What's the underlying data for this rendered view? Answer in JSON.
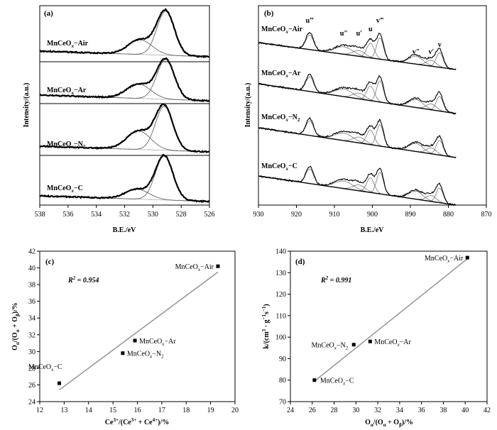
{
  "chart_data": [
    {
      "panel": "(a)",
      "type": "line",
      "xlabel": "B.E./eV",
      "ylabel": "Intensity/(a.u.)",
      "xlim": [
        538,
        526
      ],
      "x_ticks": [
        538,
        536,
        534,
        532,
        530,
        528,
        526
      ],
      "series": [
        {
          "name": "MnCeOx−Air",
          "name_parts": [
            "MnCeO",
            "x",
            "−Air"
          ],
          "peaks": [
            {
              "center": 529.1,
              "height": 1.0
            },
            {
              "center": 530.9,
              "height": 0.33
            }
          ]
        },
        {
          "name": "MnCeOx−Ar",
          "name_parts": [
            "MnCeO",
            "x",
            "−Ar"
          ],
          "peaks": [
            {
              "center": 529.1,
              "height": 1.0
            },
            {
              "center": 531.0,
              "height": 0.36
            }
          ]
        },
        {
          "name": "MnCeOx−N2",
          "name_parts": [
            "MnCeO",
            "x",
            "−N",
            "2"
          ],
          "peaks": [
            {
              "center": 529.2,
              "height": 1.0
            },
            {
              "center": 531.0,
              "height": 0.42
            }
          ]
        },
        {
          "name": "MnCeOx−C",
          "name_parts": [
            "MnCeO",
            "x",
            "−C"
          ],
          "peaks": [
            {
              "center": 529.2,
              "height": 1.0
            },
            {
              "center": 531.1,
              "height": 0.22
            }
          ]
        }
      ]
    },
    {
      "panel": "(b)",
      "type": "line",
      "xlabel": "B.E./eV",
      "ylabel": "Intensity/(a.u.)",
      "xlim": [
        930,
        870
      ],
      "x_ticks": [
        930,
        920,
        910,
        900,
        890,
        880,
        870
      ],
      "peak_labels": [
        {
          "text": "u‴",
          "x": 916.5
        },
        {
          "text": "u″",
          "x": 907.5
        },
        {
          "text": "u′",
          "x": 903.5
        },
        {
          "text": "u",
          "x": 900.5
        },
        {
          "text": "v‴",
          "x": 898.0
        },
        {
          "text": "v″",
          "x": 888.5
        },
        {
          "text": "v′",
          "x": 884.5
        },
        {
          "text": "v",
          "x": 882.3
        }
      ],
      "series": [
        {
          "name": "MnCeOx−Air",
          "name_parts": [
            "MnCeO",
            "x",
            "−Air"
          ]
        },
        {
          "name": "MnCeOx−Ar",
          "name_parts": [
            "MnCeO",
            "x",
            "−Ar"
          ]
        },
        {
          "name": "MnCeOx−N2",
          "name_parts": [
            "MnCeO",
            "x",
            "−N",
            "2"
          ]
        },
        {
          "name": "MnCeOx−C",
          "name_parts": [
            "MnCeO",
            "x",
            "−C"
          ]
        }
      ],
      "peaks": [
        {
          "center": 916.5,
          "height": 0.55
        },
        {
          "center": 907.5,
          "height": 0.28
        },
        {
          "center": 903.5,
          "height": 0.22
        },
        {
          "center": 900.5,
          "height": 0.55
        },
        {
          "center": 898.0,
          "height": 0.8
        },
        {
          "center": 888.5,
          "height": 0.3
        },
        {
          "center": 884.5,
          "height": 0.22
        },
        {
          "center": 882.3,
          "height": 0.55
        }
      ]
    },
    {
      "panel": "(c)",
      "type": "scatter",
      "xlabel": "Ce3+/(Ce3+ + Ce4+)/%",
      "ylabel": "Oα/(Oα + Oβ)/%",
      "xlim": [
        12,
        20
      ],
      "ylim": [
        24,
        42
      ],
      "x_ticks": [
        12,
        13,
        14,
        15,
        16,
        17,
        18,
        19,
        20
      ],
      "y_ticks": [
        24,
        26,
        28,
        30,
        32,
        34,
        36,
        38,
        40,
        42
      ],
      "r2": "0.954",
      "points": [
        {
          "name_parts": [
            "MnCeO",
            "x",
            "−Air"
          ],
          "x": 19.3,
          "y": 40.2
        },
        {
          "name_parts": [
            "MnCeO",
            "x",
            "−Ar"
          ],
          "x": 15.9,
          "y": 31.3
        },
        {
          "name_parts": [
            "MnCeO",
            "x",
            "−N",
            "2"
          ],
          "x": 15.4,
          "y": 29.8
        },
        {
          "name_parts": [
            "MnCeO",
            "x",
            "−C"
          ],
          "x": 12.8,
          "y": 26.2
        }
      ],
      "fit_line": {
        "x": [
          12.8,
          19.3
        ],
        "y": [
          25.4,
          39.5
        ]
      }
    },
    {
      "panel": "(d)",
      "type": "scatter",
      "xlabel": "Oα/(Oα + Oβ)/%",
      "ylabel": "k/(cm3 · g−1s−1)",
      "xlim": [
        24,
        42
      ],
      "ylim": [
        70,
        140
      ],
      "x_ticks": [
        24,
        26,
        28,
        30,
        32,
        34,
        36,
        38,
        40,
        42
      ],
      "y_ticks": [
        70,
        80,
        90,
        100,
        110,
        120,
        130,
        140
      ],
      "r2": "0.991",
      "points": [
        {
          "name_parts": [
            "MnCeO",
            "x",
            "−Air"
          ],
          "x": 40.2,
          "y": 137
        },
        {
          "name_parts": [
            "MnCeO",
            "x",
            "−Ar"
          ],
          "x": 31.3,
          "y": 98
        },
        {
          "name_parts": [
            "MnCeO",
            "x",
            "−N",
            "2"
          ],
          "x": 29.8,
          "y": 96.5
        },
        {
          "name_parts": [
            "MnCeO",
            "x",
            "−C"
          ],
          "x": 26.2,
          "y": 80
        }
      ],
      "fit_line": {
        "x": [
          26.2,
          40.2
        ],
        "y": [
          79.5,
          136.5
        ]
      }
    }
  ]
}
